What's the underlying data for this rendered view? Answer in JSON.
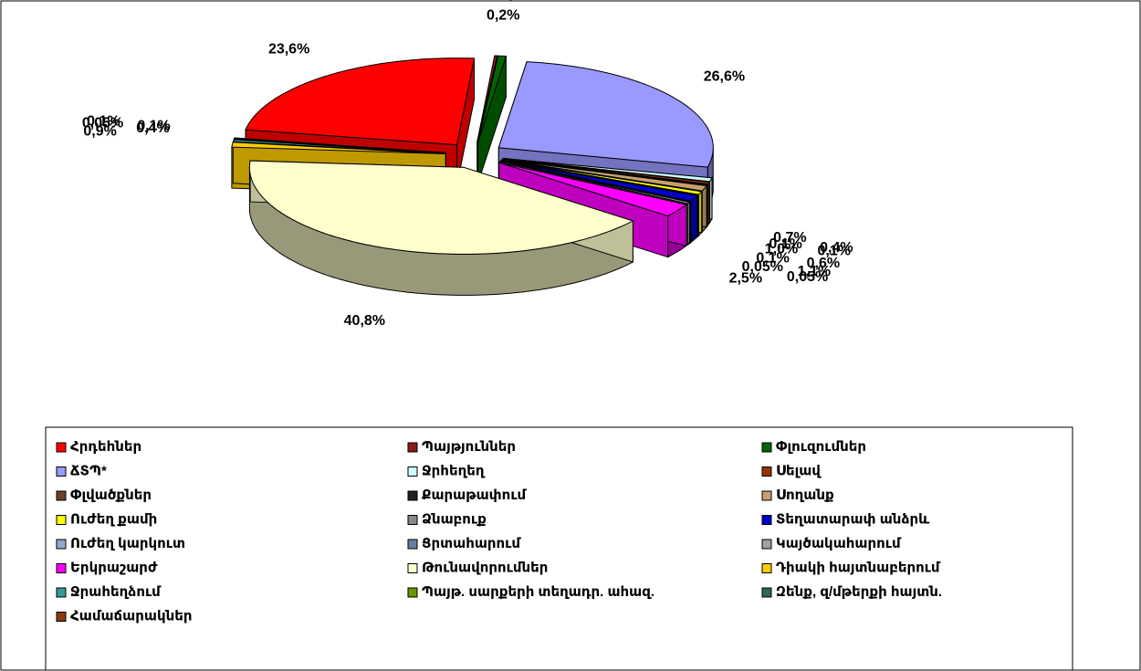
{
  "chart_data": {
    "type": "pie",
    "categories": [
      "Հրդեհներ",
      "Պայթյուններ",
      "Փլուզումներ",
      "ՃՏՊ*",
      "Ջրհեղեղ",
      "Սելավ",
      "Փլվածքներ",
      "Քարաթափում",
      "Սողանք",
      "Ուժեղ քամի",
      "Ձնաբուք",
      "Տեղատարափ անձրև",
      "Ուժեղ կարկուտ",
      "Ցրտահարում",
      "Կայծակահարում",
      "Երկրաշարժ",
      "Թունավորումներ",
      "Դիակի հայտնաբերում",
      "Ջրահեղձում",
      "Պայթ. սարքերի տեղադր. ահազ.",
      "Զենք, զ/մթերքի հայտն.",
      "Համաճարակներ"
    ],
    "values": [
      23.6,
      0.2,
      0.6,
      26.6,
      0.7,
      0.4,
      0.1,
      0.1,
      1.0,
      0.6,
      0.1,
      1.1,
      0.05,
      0.05,
      0.3,
      2.5,
      40.8,
      0.9,
      0.4,
      0.05,
      0.1,
      0.1
    ],
    "value_labels": [
      "23,6%",
      "0,2%",
      "0,6%",
      "26,6%",
      "0,7%",
      "0,4%",
      "0,1%",
      "0,1%",
      "1,0%",
      "0,6%",
      "0,1%",
      "1,1%",
      "0,05%",
      "0,05%",
      null,
      "2,5%",
      "40,8%",
      "0,9%",
      "0,4%",
      "0,05%",
      "0,1%",
      "0,1%"
    ],
    "colors": [
      "#ff0000",
      "#8b1a1a",
      "#006600",
      "#9999ff",
      "#ccffff",
      "#993300",
      "#6b4226",
      "#222222",
      "#c8a070",
      "#ffff00",
      "#888888",
      "#0000cc",
      "#8fa8c8",
      "#6680a0",
      "#a0a0a0",
      "#ff00ff",
      "#ffffcc",
      "#ffcc00",
      "#339999",
      "#669900",
      "#336655",
      "#8b3a10"
    ],
    "legend": "bottom"
  }
}
